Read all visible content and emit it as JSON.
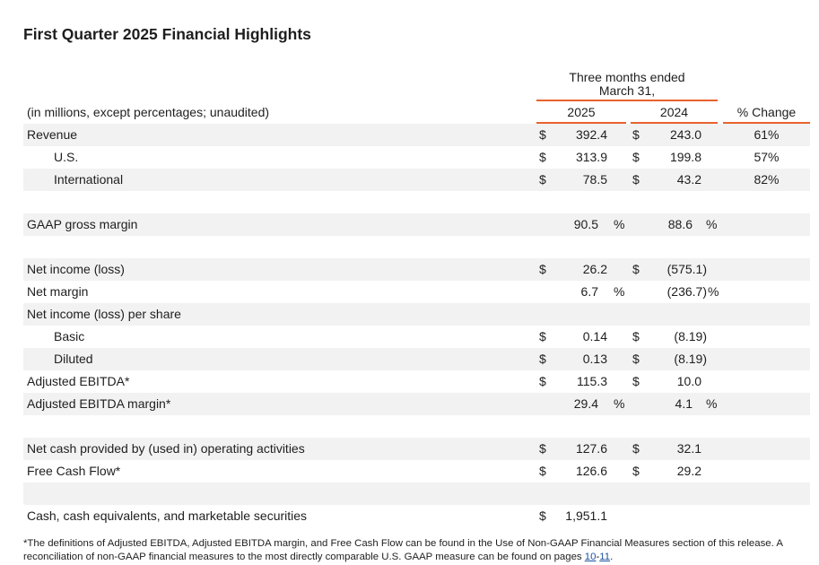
{
  "title": "First Quarter 2025 Financial Highlights",
  "header": {
    "period_line1": "Three months ended",
    "period_line2": "March 31,",
    "units": "(in millions, except percentages; unaudited)",
    "columns": [
      "2025",
      "2024",
      "% Change"
    ]
  },
  "rows": [
    {
      "label": "Revenue",
      "y2025": {
        "currency": "$",
        "value": "392.4"
      },
      "y2024": {
        "currency": "$",
        "value": "243.0"
      },
      "change": "61%"
    },
    {
      "label": "U.S.",
      "y2025": {
        "currency": "$",
        "value": "313.9"
      },
      "y2024": {
        "currency": "$",
        "value": "199.8"
      },
      "change": "57%"
    },
    {
      "label": "International",
      "y2025": {
        "currency": "$",
        "value": "78.5"
      },
      "y2024": {
        "currency": "$",
        "value": "43.2"
      },
      "change": "82%"
    },
    {
      "label": "GAAP gross margin",
      "y2025": {
        "value": "90.5",
        "suffix": "%"
      },
      "y2024": {
        "value": "88.6",
        "suffix": "%"
      }
    },
    {
      "label": "Net income (loss)",
      "y2025": {
        "currency": "$",
        "value": "26.2"
      },
      "y2024": {
        "currency": "$",
        "value": "(575.1)"
      }
    },
    {
      "label": "Net margin",
      "y2025": {
        "value": "6.7",
        "suffix": "%"
      },
      "y2024": {
        "value": "(236.7)",
        "suffix": "%"
      }
    },
    {
      "label": "Net income (loss) per share"
    },
    {
      "label": "Basic",
      "y2025": {
        "currency": "$",
        "value": "0.14"
      },
      "y2024": {
        "currency": "$",
        "value": "(8.19)"
      }
    },
    {
      "label": "Diluted",
      "y2025": {
        "currency": "$",
        "value": "0.13"
      },
      "y2024": {
        "currency": "$",
        "value": "(8.19)"
      }
    },
    {
      "label": "Adjusted EBITDA*",
      "y2025": {
        "currency": "$",
        "value": "115.3"
      },
      "y2024": {
        "currency": "$",
        "value": "10.0"
      }
    },
    {
      "label": "Adjusted EBITDA margin*",
      "y2025": {
        "value": "29.4",
        "suffix": "%"
      },
      "y2024": {
        "value": "4.1",
        "suffix": "%"
      }
    },
    {
      "label": "Net cash provided by (used in) operating activities",
      "y2025": {
        "currency": "$",
        "value": "127.6"
      },
      "y2024": {
        "currency": "$",
        "value": "32.1"
      }
    },
    {
      "label": "Free Cash Flow*",
      "y2025": {
        "currency": "$",
        "value": "126.6"
      },
      "y2024": {
        "currency": "$",
        "value": "29.2"
      }
    },
    {
      "label": "Cash, cash equivalents, and marketable securities",
      "y2025": {
        "currency": "$",
        "value": "1,951.1"
      }
    }
  ],
  "footnote": {
    "text": "*The definitions of Adjusted EBITDA, Adjusted EBITDA margin, and Free Cash Flow can be found in the Use of Non-GAAP Financial Measures section of this release. A reconciliation of non-GAAP financial measures to the most directly comparable U.S. GAAP measure can be found on pages ",
    "links": [
      "10",
      "11"
    ],
    "separator": "-",
    "end": "."
  }
}
